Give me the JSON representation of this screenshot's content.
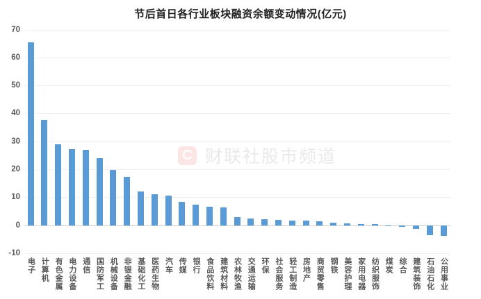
{
  "chart_data": {
    "type": "bar",
    "title": "节后首日各行业板块融资余额变动情况(亿元)",
    "categories": [
      "电子",
      "计算机",
      "有色金属",
      "电力设备",
      "通信",
      "国防军工",
      "机械设备",
      "非银金融",
      "基础化工",
      "医药生物",
      "汽车",
      "传媒",
      "银行",
      "食品饮料",
      "建筑材料",
      "农林牧渔",
      "交通运输",
      "环保",
      "社会服务",
      "轻工制造",
      "房地产",
      "商贸零售",
      "钢铁",
      "美容护理",
      "家用电器",
      "纺织服饰",
      "煤炭",
      "综合",
      "建筑装饰",
      "石油石化",
      "公用事业"
    ],
    "values": [
      65.5,
      37.6,
      29.0,
      27.1,
      26.9,
      24.0,
      19.8,
      17.2,
      12.2,
      11.1,
      10.6,
      8.3,
      7.5,
      6.6,
      6.5,
      2.8,
      2.3,
      2.2,
      1.9,
      1.7,
      1.7,
      1.5,
      0.9,
      0.6,
      0.5,
      0.4,
      -0.4,
      -0.7,
      -1.4,
      -3.6,
      -3.9
    ],
    "xlabel": "",
    "ylabel": "",
    "ylim": [
      -10,
      70
    ],
    "y_ticks": [
      70,
      60,
      50,
      40,
      30,
      20,
      10,
      0,
      -10
    ],
    "grid": true,
    "legend": "none",
    "bar_color": "#5b9bd5"
  },
  "watermark": {
    "logo_text": "C",
    "text": "财联社股市频道"
  }
}
